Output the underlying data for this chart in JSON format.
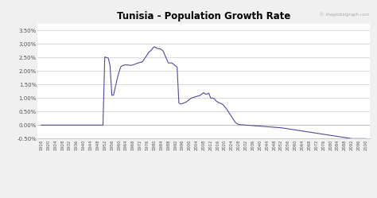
{
  "title": "Tunisia - Population Growth Rate",
  "watermark": "© theglobalgraph.com",
  "line_color": "#4d4a9f",
  "background_color": "#f0f0f0",
  "plot_bg_color": "#ffffff",
  "grid_color": "#cccccc",
  "ylim": [
    -0.005,
    0.0375
  ],
  "yticks": [
    -0.005,
    0.0,
    0.005,
    0.01,
    0.015,
    0.02,
    0.025,
    0.03,
    0.035
  ],
  "ytick_labels": [
    "-0.50%",
    "0.00%",
    "0.50%",
    "1.00%",
    "1.50%",
    "2.00%",
    "2.50%",
    "3.00%",
    "3.50%"
  ],
  "years": [
    1916,
    1917,
    1918,
    1919,
    1920,
    1921,
    1922,
    1923,
    1924,
    1925,
    1926,
    1927,
    1928,
    1929,
    1930,
    1931,
    1932,
    1933,
    1934,
    1935,
    1936,
    1937,
    1938,
    1939,
    1940,
    1941,
    1942,
    1943,
    1944,
    1945,
    1946,
    1947,
    1948,
    1949,
    1950,
    1951,
    1952,
    1953,
    1954,
    1955,
    1956,
    1957,
    1958,
    1959,
    1960,
    1961,
    1962,
    1963,
    1964,
    1965,
    1966,
    1967,
    1968,
    1969,
    1970,
    1971,
    1972,
    1973,
    1974,
    1975,
    1976,
    1977,
    1978,
    1979,
    1980,
    1981,
    1982,
    1983,
    1984,
    1985,
    1986,
    1987,
    1988,
    1989,
    1990,
    1991,
    1992,
    1993,
    1994,
    1995,
    1996,
    1997,
    1998,
    1999,
    2000,
    2001,
    2002,
    2003,
    2004,
    2005,
    2006,
    2007,
    2008,
    2009,
    2010,
    2011,
    2012,
    2013,
    2014,
    2015,
    2016,
    2017,
    2018,
    2019,
    2020,
    2021,
    2022,
    2023,
    2024,
    2025,
    2026,
    2027,
    2028,
    2029,
    2030,
    2031,
    2032,
    2033,
    2034,
    2035,
    2036,
    2037,
    2038,
    2039,
    2040,
    2041,
    2042,
    2043,
    2044,
    2045,
    2046,
    2047,
    2048,
    2049,
    2050,
    2051,
    2052,
    2053,
    2054,
    2055,
    2056,
    2057,
    2058,
    2059,
    2060,
    2061,
    2062,
    2063,
    2064,
    2065,
    2066,
    2067,
    2068,
    2069,
    2070,
    2071,
    2072,
    2073,
    2074,
    2075,
    2076,
    2077,
    2078,
    2079,
    2080,
    2081,
    2082,
    2083,
    2084,
    2085,
    2086,
    2087,
    2088,
    2089,
    2090,
    2091,
    2092,
    2093,
    2094,
    2095,
    2096,
    2097,
    2098,
    2099,
    2100
  ],
  "values": [
    0.0,
    0.0,
    0.0,
    0.0,
    0.0,
    0.0,
    0.0,
    0.0,
    0.0,
    0.0,
    0.0,
    0.0,
    0.0,
    0.0,
    0.0,
    0.0,
    0.0,
    0.0,
    0.0,
    0.0,
    0.0,
    0.0,
    0.0,
    0.0,
    0.0,
    0.0,
    0.0,
    0.0,
    0.0,
    0.0,
    0.0,
    0.0,
    0.0,
    0.0,
    0.0,
    0.0,
    0.0252,
    0.025,
    0.0248,
    0.022,
    0.011,
    0.0111,
    0.014,
    0.017,
    0.0195,
    0.0215,
    0.022,
    0.0222,
    0.0223,
    0.0222,
    0.0222,
    0.0221,
    0.0223,
    0.0225,
    0.0228,
    0.023,
    0.0232,
    0.0233,
    0.024,
    0.025,
    0.026,
    0.027,
    0.0275,
    0.0283,
    0.029,
    0.0287,
    0.0283,
    0.0283,
    0.028,
    0.0275,
    0.026,
    0.0245,
    0.023,
    0.023,
    0.023,
    0.0225,
    0.022,
    0.0215,
    0.0082,
    0.0078,
    0.008,
    0.0082,
    0.0085,
    0.009,
    0.0095,
    0.01,
    0.0102,
    0.0104,
    0.0106,
    0.0108,
    0.011,
    0.0115,
    0.012,
    0.0115,
    0.0115,
    0.0118,
    0.01,
    0.01,
    0.0098,
    0.009,
    0.0085,
    0.0082,
    0.008,
    0.0075,
    0.0068,
    0.006,
    0.005,
    0.004,
    0.003,
    0.002,
    0.001,
    0.0005,
    0.0002,
    0.00015,
    0.0001,
    5e-05,
    0.0,
    -5e-05,
    -0.0001,
    -0.00015,
    -0.0002,
    -0.00025,
    -0.0003,
    -0.00035,
    -0.0004,
    -0.00045,
    -0.0005,
    -0.00055,
    -0.0006,
    -0.00065,
    -0.0007,
    -0.00075,
    -0.0008,
    -0.00085,
    -0.0009,
    -0.00095,
    -0.001,
    -0.0011,
    -0.0012,
    -0.0013,
    -0.0014,
    -0.0015,
    -0.0016,
    -0.0017,
    -0.0018,
    -0.0019,
    -0.002,
    -0.0021,
    -0.0022,
    -0.0023,
    -0.0024,
    -0.0025,
    -0.0026,
    -0.0027,
    -0.0028,
    -0.0029,
    -0.003,
    -0.0031,
    -0.0032,
    -0.0033,
    -0.0034,
    -0.0035,
    -0.0036,
    -0.0037,
    -0.0038,
    -0.0039,
    -0.004,
    -0.0041,
    -0.0042,
    -0.0043,
    -0.0044,
    -0.0045,
    -0.0046,
    -0.0047,
    -0.0048,
    -0.0049,
    -0.005,
    -0.005,
    -0.005,
    -0.005,
    -0.005,
    -0.005,
    -0.005,
    -0.005,
    -0.005
  ]
}
